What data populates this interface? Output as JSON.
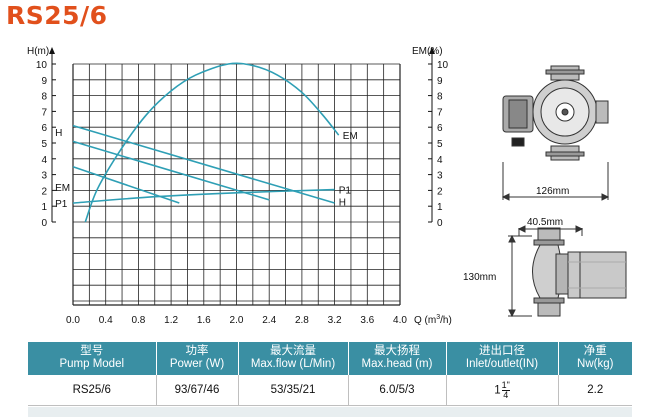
{
  "title": "RS25/6",
  "chart_data": {
    "type": "line",
    "x": [
      0,
      0.4,
      0.8,
      1.2,
      1.6,
      2.0,
      2.4,
      2.8,
      3.2,
      3.6,
      4.0
    ],
    "xtick_labels": [
      "0.0",
      "0.4",
      "0.8",
      "1.2",
      "1.6",
      "2.0",
      "2.4",
      "2.8",
      "3.2",
      "3.6",
      "4.0"
    ],
    "xlabel_prefix": "Q (m",
    "xlabel_sup": "3",
    "xlabel_suffix": "/h)",
    "xlim": [
      0,
      4.0
    ],
    "ylabel_left": "H(m)",
    "ylim_left": [
      0,
      10
    ],
    "yticks_left": [
      "0",
      "1",
      "2",
      "3",
      "4",
      "5",
      "6",
      "7",
      "8",
      "9",
      "10"
    ],
    "ylabel_right": "EM(%)",
    "ylim_right": [
      0,
      10
    ],
    "yticks_right": [
      "0",
      "1",
      "2",
      "3",
      "4",
      "5",
      "6",
      "7",
      "8",
      "9",
      "10"
    ],
    "grid": true,
    "series": [
      {
        "name": "H",
        "kind": "head",
        "points": [
          [
            0,
            6.1
          ],
          [
            3.2,
            1.2
          ]
        ]
      },
      {
        "name": "",
        "kind": "head",
        "points": [
          [
            0,
            5.1
          ],
          [
            2.4,
            1.4
          ]
        ]
      },
      {
        "name": "",
        "kind": "head",
        "points": [
          [
            0,
            3.5
          ],
          [
            1.3,
            1.2
          ]
        ]
      },
      {
        "name": "EM",
        "kind": "efficiency",
        "points": [
          [
            0.15,
            0
          ],
          [
            0.3,
            2.1
          ],
          [
            0.6,
            4.7
          ],
          [
            0.9,
            6.8
          ],
          [
            1.2,
            8.3
          ],
          [
            1.5,
            9.3
          ],
          [
            1.9,
            10.0
          ],
          [
            2.2,
            9.9
          ],
          [
            2.5,
            9.3
          ],
          [
            2.8,
            8.2
          ],
          [
            3.05,
            6.8
          ],
          [
            3.25,
            5.5
          ]
        ]
      },
      {
        "name": "P1",
        "kind": "power",
        "points": [
          [
            0,
            1.2
          ],
          [
            1.0,
            1.6
          ],
          [
            2.0,
            1.85
          ],
          [
            3.2,
            2.05
          ]
        ]
      }
    ],
    "curve_labels": [
      {
        "text": "H",
        "x": 0.05,
        "y": 5.7
      },
      {
        "text": "EM",
        "x": 3.3,
        "y": 5.5
      },
      {
        "text": "H",
        "x": 3.25,
        "y": 1.3
      },
      {
        "text": "P1",
        "x": 3.25,
        "y": 2.05
      },
      {
        "text": "EM",
        "x": 0.05,
        "y": 2.2
      },
      {
        "text": "P1",
        "x": 0.05,
        "y": 1.2
      }
    ],
    "colors": {
      "grid": "#222222",
      "curve": "#2e9fb5"
    }
  },
  "drawing": {
    "dim_width": "126mm",
    "dim_inlet": "40.5mm",
    "dim_height": "130mm"
  },
  "table": {
    "headers": [
      {
        "cn": "型号",
        "en": "Pump Model"
      },
      {
        "cn": "功率",
        "en": "Power (W)"
      },
      {
        "cn": "最大流量",
        "en": "Max.flow (L/Min)"
      },
      {
        "cn": "最大扬程",
        "en": "Max.head (m)"
      },
      {
        "cn": "进出口径",
        "en": "Inlet/outlet(IN)"
      },
      {
        "cn": "净重",
        "en": "Nw(kg)"
      }
    ],
    "row": {
      "model": "RS25/6",
      "power": "93/67/46",
      "flow": "53/35/21",
      "head": "6.0/5/3",
      "port_whole": "1",
      "port_num": "1",
      "port_den": "4",
      "port_mark": "\"",
      "weight": "2.2"
    }
  }
}
